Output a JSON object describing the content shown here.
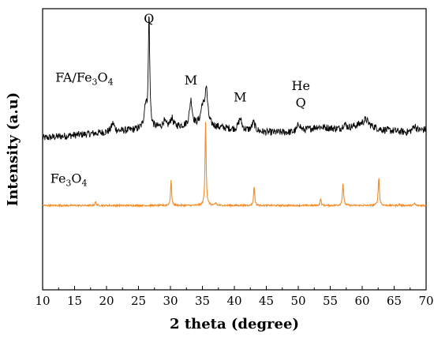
{
  "chart_data": {
    "type": "line",
    "title": "",
    "xlabel": "2 theta (degree)",
    "ylabel": "Intensity (a.u)",
    "xlim": [
      10,
      70
    ],
    "xticks": [
      "10",
      "15",
      "20",
      "25",
      "30",
      "35",
      "40",
      "45",
      "50",
      "55",
      "60",
      "65",
      "70"
    ],
    "ylim": [
      0,
      100
    ],
    "yticks_shown": false,
    "grid": false,
    "legend": "none",
    "series": [
      {
        "name_parts": [
          "FA/Fe",
          "3",
          "O",
          "4"
        ],
        "color": "#000000",
        "baseline": 54,
        "noise": 1.3,
        "background": [
          [
            10,
            54
          ],
          [
            15,
            55
          ],
          [
            20,
            56
          ],
          [
            25,
            57
          ],
          [
            30,
            58
          ],
          [
            35,
            58.5
          ],
          [
            40,
            57
          ],
          [
            45,
            56
          ],
          [
            50,
            56
          ],
          [
            53,
            58
          ],
          [
            57,
            57
          ],
          [
            60,
            59
          ],
          [
            63,
            57
          ],
          [
            67,
            56
          ],
          [
            70,
            57
          ]
        ],
        "peaks": [
          {
            "x": 21.0,
            "h": 3,
            "w": 0.3
          },
          {
            "x": 26.1,
            "h": 8,
            "w": 0.25
          },
          {
            "x": 26.65,
            "h": 40,
            "w": 0.13
          },
          {
            "x": 29.0,
            "h": 2,
            "w": 0.25
          },
          {
            "x": 30.2,
            "h": 3,
            "w": 0.25
          },
          {
            "x": 33.2,
            "h": 9,
            "w": 0.25
          },
          {
            "x": 35.0,
            "h": 6,
            "w": 0.3
          },
          {
            "x": 35.6,
            "h": 13,
            "w": 0.25
          },
          {
            "x": 40.9,
            "h": 4,
            "w": 0.3
          },
          {
            "x": 43.0,
            "h": 3,
            "w": 0.3
          },
          {
            "x": 50.1,
            "h": 3,
            "w": 0.3
          },
          {
            "x": 57.2,
            "h": 2,
            "w": 0.3
          },
          {
            "x": 60.6,
            "h": 2,
            "w": 0.4
          },
          {
            "x": 68.2,
            "h": 2,
            "w": 0.3
          }
        ]
      },
      {
        "name_parts": [
          "Fe",
          "3",
          "O",
          "4"
        ],
        "color": "#f28c28",
        "baseline": 30,
        "noise": 0.3,
        "background": [
          [
            10,
            30
          ],
          [
            70,
            30
          ]
        ],
        "peaks": [
          {
            "x": 18.3,
            "h": 1.3,
            "w": 0.12
          },
          {
            "x": 30.1,
            "h": 9,
            "w": 0.1
          },
          {
            "x": 35.5,
            "h": 30,
            "w": 0.1
          },
          {
            "x": 37.1,
            "h": 1,
            "w": 0.1
          },
          {
            "x": 43.1,
            "h": 7,
            "w": 0.1
          },
          {
            "x": 53.5,
            "h": 2.5,
            "w": 0.1
          },
          {
            "x": 57.0,
            "h": 8,
            "w": 0.11
          },
          {
            "x": 62.6,
            "h": 10,
            "w": 0.11
          },
          {
            "x": 65.8,
            "h": 0.5,
            "w": 0.1
          },
          {
            "x": 68.2,
            "h": 0.8,
            "w": 0.1
          }
        ]
      }
    ],
    "annotations": [
      {
        "id": "q1",
        "text": "Q",
        "x": 26.65,
        "y": 95
      },
      {
        "id": "m1",
        "text": "M",
        "x": 33.2,
        "y": 73
      },
      {
        "id": "m2",
        "text": "M",
        "x": 40.9,
        "y": 67
      },
      {
        "id": "he",
        "text": "He",
        "x": 50.4,
        "y": 71
      },
      {
        "id": "q2",
        "text": "Q",
        "x": 50.4,
        "y": 65
      }
    ],
    "series_label_positions": [
      {
        "x": 12.0,
        "y": 74
      },
      {
        "x": 11.2,
        "y": 38
      }
    ]
  }
}
